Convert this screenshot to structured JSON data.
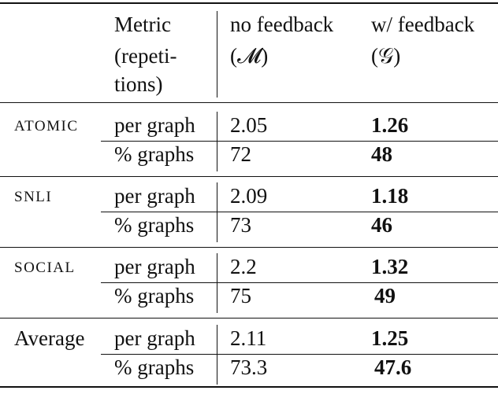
{
  "header": {
    "metric_line1": "Metric",
    "metric_line2": "(repeti-",
    "metric_line3": "tions)",
    "nofb_line1": "no feedback",
    "nofb_line2": "(𝓜)",
    "wfb_line1": "w/ feedback",
    "wfb_line2": "(𝒢)"
  },
  "groups": [
    {
      "name": "ATOMIC",
      "rows": [
        {
          "metric": "per graph",
          "no_feedback": "2.05",
          "with_feedback": "1.26"
        },
        {
          "metric": "% graphs",
          "no_feedback": "72",
          "with_feedback": "48"
        }
      ]
    },
    {
      "name": "SNLI",
      "rows": [
        {
          "metric": "per graph",
          "no_feedback": "2.09",
          "with_feedback": "1.18"
        },
        {
          "metric": "% graphs",
          "no_feedback": "73",
          "with_feedback": "46"
        }
      ]
    },
    {
      "name": "SOCIAL",
      "rows": [
        {
          "metric": "per graph",
          "no_feedback": "2.2",
          "with_feedback": "1.32"
        },
        {
          "metric": "% graphs",
          "no_feedback": "75",
          "with_feedback": "49"
        }
      ]
    },
    {
      "name": "Average",
      "rows": [
        {
          "metric": "per graph",
          "no_feedback": "2.11",
          "with_feedback": "1.25"
        },
        {
          "metric": "% graphs",
          "no_feedback": "73.3",
          "with_feedback": "47.6"
        }
      ]
    }
  ]
}
